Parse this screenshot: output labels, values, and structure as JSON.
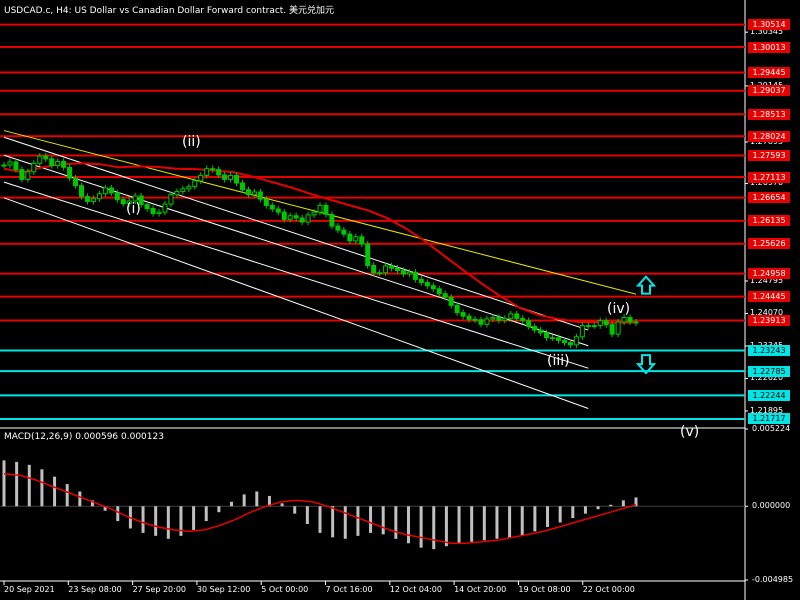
{
  "header": {
    "title": "USDCAD.c, H4:  US Dollar vs Canadian Dollar Forward contract. 美元兑加元",
    "macd_label": "MACD(12,26,9) 0.000596 0.000123"
  },
  "colors": {
    "background": "#000000",
    "candles": "#00c800",
    "resistance": "#e60000",
    "support": "#00e6e6",
    "ma_line": "#e60000",
    "macd_hist": "#c0c0c0",
    "signal_line": "#e60000",
    "channel": "#ffffff",
    "trendline": "#e6e600"
  },
  "chart_data": [
    {
      "type": "line",
      "title": "USDCAD.c, H4",
      "ylim": [
        1.2156,
        1.3075
      ],
      "price_ticks": [
        "1.30345",
        "1.29145",
        "1.27895",
        "1.26970",
        "1.24795",
        "1.24070",
        "1.23345",
        "1.22620",
        "1.21895"
      ],
      "resistance_levels": [
        "1.30514",
        "1.30013",
        "1.29445",
        "1.29037",
        "1.28513",
        "1.28024",
        "1.27593",
        "1.27113",
        "1.26654",
        "1.26135",
        "1.25626",
        "1.24958",
        "1.24445",
        "1.23913"
      ],
      "support_levels": [
        "1.23243",
        "1.22785",
        "1.22244",
        "1.21717"
      ],
      "x_labels": [
        "20 Sep 2021",
        "23 Sep 08:00",
        "27 Sep 20:00",
        "30 Sep 12:00",
        "5 Oct 00:00",
        "7 Oct 16:00",
        "12 Oct 04:00",
        "14 Oct 20:00",
        "19 Oct 08:00",
        "22 Oct 00:00"
      ],
      "wave_labels": [
        {
          "text": "(i)",
          "date": "28 Sep",
          "price": 1.2637
        },
        {
          "text": "(ii)",
          "date": "30 Sep",
          "price": 1.2787
        },
        {
          "text": "(iii)",
          "date": "20 Oct",
          "price": 1.2298
        },
        {
          "text": "(iv)",
          "date": "22 Oct",
          "price": 1.2414
        },
        {
          "text": "(v)",
          "date": "28 Oct",
          "price": 1.214
        }
      ],
      "close_series": [
        1.2738,
        1.2745,
        1.2728,
        1.2706,
        1.2723,
        1.2742,
        1.2758,
        1.2752,
        1.2737,
        1.2746,
        1.2733,
        1.2709,
        1.2692,
        1.2668,
        1.2657,
        1.2663,
        1.2674,
        1.2687,
        1.2676,
        1.2661,
        1.2652,
        1.2658,
        1.2669,
        1.265,
        1.2641,
        1.263,
        1.2633,
        1.2651,
        1.2672,
        1.2679,
        1.2685,
        1.269,
        1.2703,
        1.2715,
        1.273,
        1.2728,
        1.2716,
        1.2706,
        1.2715,
        1.2698,
        1.2683,
        1.2672,
        1.2678,
        1.2662,
        1.2648,
        1.264,
        1.2633,
        1.2617,
        1.2625,
        1.262,
        1.2611,
        1.2627,
        1.2633,
        1.2648,
        1.2628,
        1.2602,
        1.2593,
        1.2584,
        1.2569,
        1.2578,
        1.2562,
        1.2514,
        1.2498,
        1.2498,
        1.2513,
        1.2508,
        1.2503,
        1.2495,
        1.2499,
        1.2483,
        1.2476,
        1.2469,
        1.2462,
        1.2451,
        1.2443,
        1.2425,
        1.2409,
        1.2401,
        1.2394,
        1.2393,
        1.2383,
        1.2395,
        1.2398,
        1.2392,
        1.2396,
        1.2406,
        1.2396,
        1.2391,
        1.2378,
        1.237,
        1.2364,
        1.2353,
        1.2353,
        1.2347,
        1.2342,
        1.2337,
        1.2355,
        1.238,
        1.238,
        1.238,
        1.2391,
        1.2382,
        1.2361,
        1.2388,
        1.2398,
        1.2388,
        1.2386
      ],
      "ma_series": [
        1.273,
        1.2722,
        1.2733,
        1.274,
        1.2742,
        1.274,
        1.2733,
        1.2735,
        1.2734,
        1.273,
        1.2729,
        1.2726,
        1.2722,
        1.2712,
        1.27,
        1.2688,
        1.2674,
        1.2661,
        1.2649,
        1.2637,
        1.262,
        1.2596,
        1.2568,
        1.2535,
        1.2503,
        1.2472,
        1.2443,
        1.2418,
        1.2403,
        1.2394,
        1.2388,
        1.2387,
        1.2386,
        1.2387
      ],
      "macd_histogram": [
        0.0031,
        0.003,
        0.0028,
        0.0025,
        0.002,
        0.0015,
        0.001,
        0.0004,
        -0.0003,
        -0.001,
        -0.0015,
        -0.0018,
        -0.002,
        -0.0022,
        -0.002,
        -0.0016,
        -0.001,
        -0.0004,
        0.0003,
        0.0008,
        0.001,
        0.0007,
        0.0002,
        -0.0005,
        -0.0012,
        -0.0018,
        -0.0021,
        -0.0022,
        -0.002,
        -0.0018,
        -0.0019,
        -0.0022,
        -0.0025,
        -0.0028,
        -0.0029,
        -0.0027,
        -0.0025,
        -0.0024,
        -0.0023,
        -0.0022,
        -0.0021,
        -0.002,
        -0.0017,
        -0.0014,
        -0.0011,
        -0.0008,
        -0.0005,
        -0.0002,
        0.0001,
        0.0004,
        0.0006
      ],
      "macd_signal": [
        0.0022,
        0.0021,
        0.0018,
        0.0014,
        0.001,
        0.0006,
        0.0002,
        -0.0002,
        -0.0007,
        -0.0011,
        -0.0014,
        -0.0016,
        -0.0017,
        -0.0016,
        -0.0013,
        -0.0009,
        -0.0004,
        0.0,
        0.0003,
        0.0004,
        0.0003,
        0.0,
        -0.0004,
        -0.0008,
        -0.0012,
        -0.0016,
        -0.0019,
        -0.0021,
        -0.0023,
        -0.0025,
        -0.0025,
        -0.0024,
        -0.0023,
        -0.0021,
        -0.0019,
        -0.0017,
        -0.0014,
        -0.0011,
        -0.0008,
        -0.0005,
        -0.0002,
        0.0001
      ],
      "macd_ticks": [
        "0.005224",
        "0.000000",
        "-0.004985"
      ],
      "macd_ylim": [
        -0.004985,
        0.005224
      ],
      "legend": "none",
      "grid": false
    }
  ]
}
